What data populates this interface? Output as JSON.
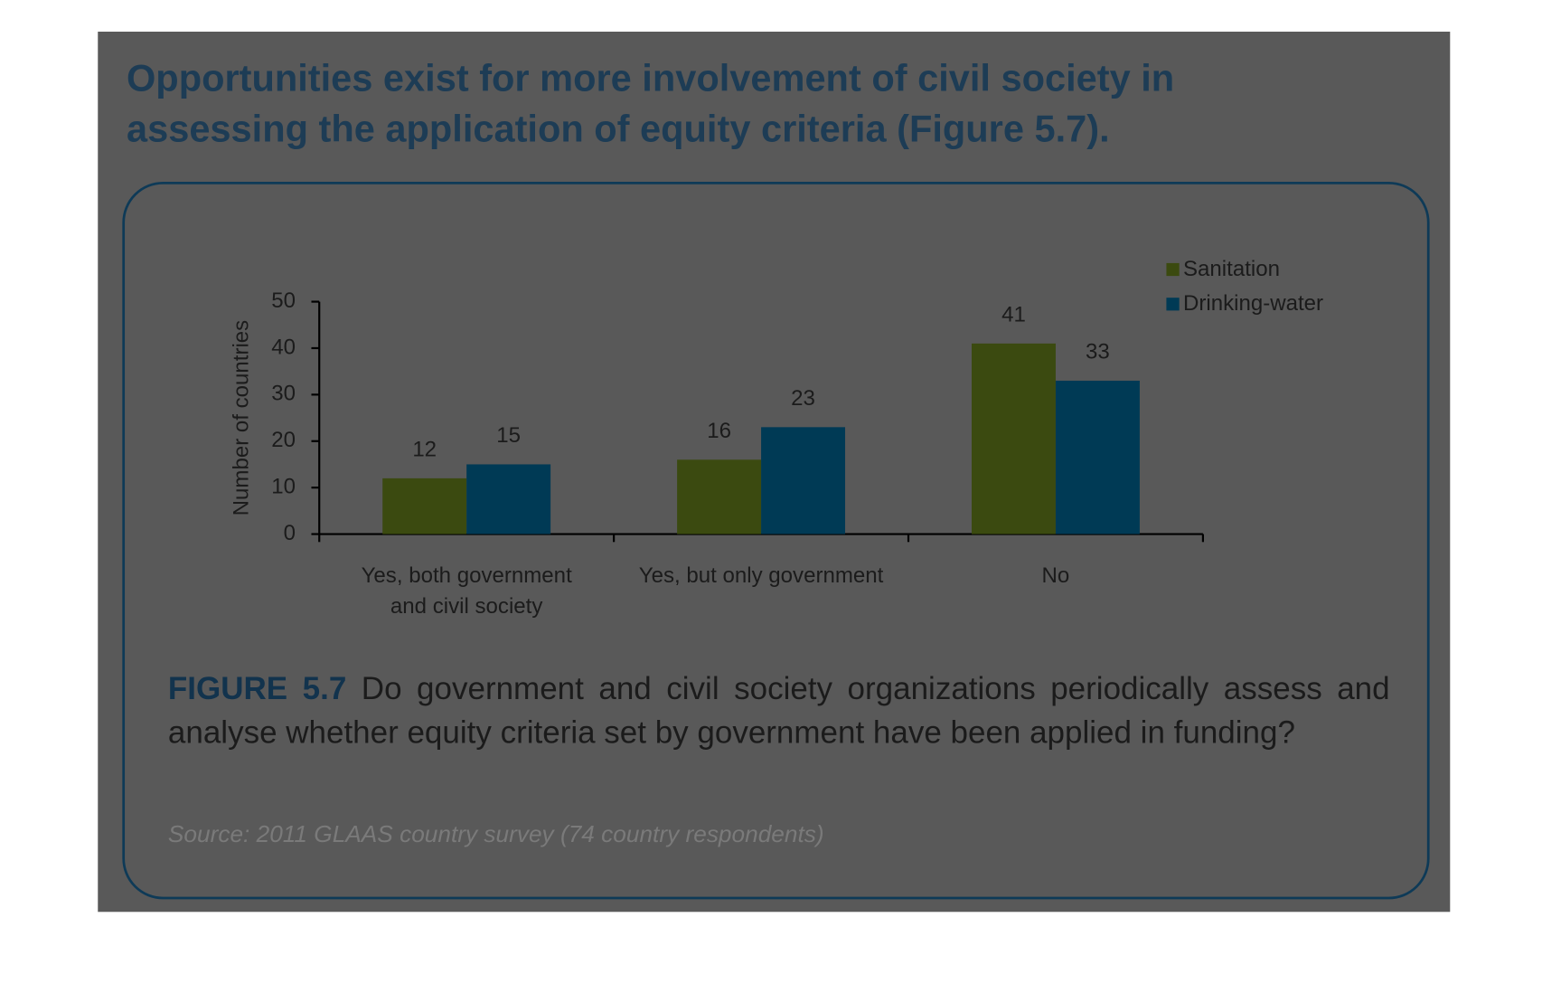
{
  "heading": "Opportunities exist for more involvement of civil society in assessing the application of equity criteria (Figure 5.7).",
  "chart_data": {
    "type": "bar",
    "categories": [
      "Yes, both government and civil society",
      "Yes, but only government",
      "No"
    ],
    "series": [
      {
        "name": "Sanitation",
        "color": "#3b4a10",
        "values": [
          12,
          16,
          41
        ]
      },
      {
        "name": "Drinking-water",
        "color": "#003a55",
        "values": [
          15,
          23,
          33
        ]
      }
    ],
    "ylabel": "Number of countries",
    "ylim": [
      0,
      50
    ],
    "yticks": [
      0,
      10,
      20,
      30,
      40,
      50
    ],
    "legend": "upper right"
  },
  "caption": {
    "label": "FIGURE 5.7",
    "text": "Do government and civil society organizations periodically assess and analyse whether equity criteria set by government have been applied in funding?"
  },
  "source": "Source: 2011 GLAAS country survey (74 country respondents)"
}
